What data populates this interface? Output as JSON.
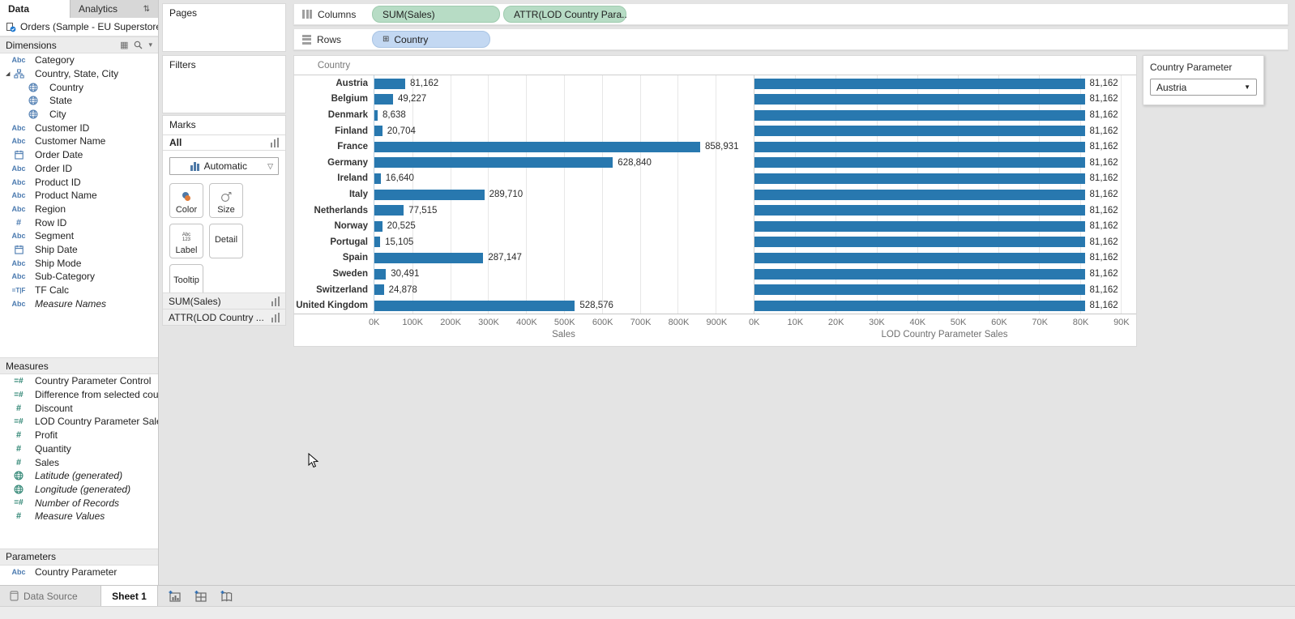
{
  "sidebar": {
    "tabs": [
      {
        "label": "Data"
      },
      {
        "label": "Analytics"
      }
    ],
    "datasource": "Orders (Sample - EU Superstore)",
    "sections": {
      "dimensions": {
        "title": "Dimensions",
        "items": [
          {
            "label": "Category",
            "icon": "abc"
          },
          {
            "label": "Country, State, City",
            "icon": "hierarchy",
            "expanded": true
          },
          {
            "label": "Country",
            "icon": "globe",
            "indent": 1
          },
          {
            "label": "State",
            "icon": "globe",
            "indent": 1
          },
          {
            "label": "City",
            "icon": "globe",
            "indent": 1
          },
          {
            "label": "Customer ID",
            "icon": "abc"
          },
          {
            "label": "Customer Name",
            "icon": "abc"
          },
          {
            "label": "Order Date",
            "icon": "calendar"
          },
          {
            "label": "Order ID",
            "icon": "abc"
          },
          {
            "label": "Product ID",
            "icon": "abc"
          },
          {
            "label": "Product Name",
            "icon": "abc"
          },
          {
            "label": "Region",
            "icon": "abc"
          },
          {
            "label": "Row ID",
            "icon": "hash"
          },
          {
            "label": "Segment",
            "icon": "abc"
          },
          {
            "label": "Ship Date",
            "icon": "calendar"
          },
          {
            "label": "Ship Mode",
            "icon": "abc"
          },
          {
            "label": "Sub-Category",
            "icon": "abc"
          },
          {
            "label": "TF Calc",
            "icon": "tf"
          },
          {
            "label": "Measure Names",
            "icon": "abc",
            "italic": true
          }
        ]
      },
      "measures": {
        "title": "Measures",
        "items": [
          {
            "label": "Country Parameter Control",
            "icon": "calc-hash"
          },
          {
            "label": "Difference from selected cou...",
            "icon": "calc-hash"
          },
          {
            "label": "Discount",
            "icon": "hash"
          },
          {
            "label": "LOD Country Parameter Sales",
            "icon": "calc-hash"
          },
          {
            "label": "Profit",
            "icon": "hash"
          },
          {
            "label": "Quantity",
            "icon": "hash"
          },
          {
            "label": "Sales",
            "icon": "hash"
          },
          {
            "label": "Latitude (generated)",
            "icon": "globe",
            "italic": true
          },
          {
            "label": "Longitude (generated)",
            "icon": "globe",
            "italic": true
          },
          {
            "label": "Number of Records",
            "icon": "calc-hash",
            "italic": true
          },
          {
            "label": "Measure Values",
            "icon": "hash",
            "italic": true
          }
        ]
      },
      "parameters": {
        "title": "Parameters",
        "items": [
          {
            "label": "Country Parameter",
            "icon": "abc"
          }
        ]
      }
    }
  },
  "cards": {
    "pages_title": "Pages",
    "filters_title": "Filters",
    "marks": {
      "title": "Marks",
      "all_label": "All",
      "mark_type": "Automatic",
      "buttons_row1": [
        "Color",
        "Size",
        "Label"
      ],
      "buttons_row2": [
        "Detail",
        "Tooltip"
      ],
      "measure_rows": [
        "SUM(Sales)",
        "ATTR(LOD Country ..."
      ]
    }
  },
  "shelves": {
    "columns": {
      "label": "Columns",
      "pills": [
        {
          "text": "SUM(Sales)",
          "type": "green"
        },
        {
          "text": "ATTR(LOD Country Para..",
          "type": "green"
        }
      ]
    },
    "rows": {
      "label": "Rows",
      "pills": [
        {
          "text": "Country",
          "type": "blue",
          "expand": true
        }
      ]
    }
  },
  "chart_data": {
    "type": "bar",
    "orientation": "horizontal",
    "row_field": "Country",
    "bar_color": "#2878af",
    "categories": [
      "Austria",
      "Belgium",
      "Denmark",
      "Finland",
      "France",
      "Germany",
      "Ireland",
      "Italy",
      "Netherlands",
      "Norway",
      "Portugal",
      "Spain",
      "Sweden",
      "Switzerland",
      "United Kingdom"
    ],
    "series": [
      {
        "name": "Sales",
        "xlabel": "Sales",
        "axis_max": 1000000,
        "tick_step": 100000,
        "tick_labels": [
          "0K",
          "100K",
          "200K",
          "300K",
          "400K",
          "500K",
          "600K",
          "700K",
          "800K",
          "900K"
        ],
        "values": [
          81162,
          49227,
          8638,
          20704,
          858931,
          628840,
          16640,
          289710,
          77515,
          20525,
          15105,
          287147,
          30491,
          24878,
          528576
        ],
        "labels": [
          "81,162",
          "49,227",
          "8,638",
          "20,704",
          "858,931",
          "628,840",
          "16,640",
          "289,710",
          "77,515",
          "20,525",
          "15,105",
          "287,147",
          "30,491",
          "24,878",
          "528,576"
        ]
      },
      {
        "name": "LOD Country Parameter Sales",
        "xlabel": "LOD Country Parameter Sales",
        "axis_max": 93600,
        "tick_step": 10000,
        "tick_labels": [
          "0K",
          "10K",
          "20K",
          "30K",
          "40K",
          "50K",
          "60K",
          "70K",
          "80K",
          "90K"
        ],
        "values": [
          81162,
          81162,
          81162,
          81162,
          81162,
          81162,
          81162,
          81162,
          81162,
          81162,
          81162,
          81162,
          81162,
          81162,
          81162
        ],
        "labels": [
          "81,162",
          "81,162",
          "81,162",
          "81,162",
          "81,162",
          "81,162",
          "81,162",
          "81,162",
          "81,162",
          "81,162",
          "81,162",
          "81,162",
          "81,162",
          "81,162",
          "81,162"
        ]
      }
    ]
  },
  "parameter_panel": {
    "title": "Country Parameter",
    "value": "Austria"
  },
  "bottom_bar": {
    "tabs": [
      {
        "label": "Data Source"
      },
      {
        "label": "Sheet 1",
        "active": true
      }
    ],
    "icons": [
      "new-worksheet",
      "new-dashboard",
      "new-story"
    ]
  }
}
